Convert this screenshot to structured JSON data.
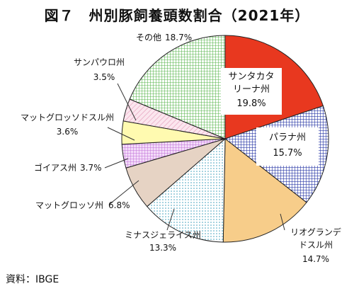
{
  "chart_data": {
    "type": "pie",
    "title": "図７　州別豚飼養頭数割合（2021年）",
    "source": "資料：IBGE",
    "slices": [
      {
        "name": "サンタカタ\nリーナ州",
        "value": 19.8,
        "label_value": "19.8%",
        "color": "#e8381f",
        "pattern": "solid"
      },
      {
        "name": "パラナ州",
        "value": 15.7,
        "label_value": "15.7%",
        "color": "#2b3aa8",
        "pattern": "grid-blue"
      },
      {
        "name": "リオグランデ\nドスル州",
        "value": 14.7,
        "label_value": "14.7%",
        "color": "#f7cd8a",
        "pattern": "solid"
      },
      {
        "name": "ミナスジェライス州",
        "value": 13.3,
        "label_value": "13.3%",
        "color": "#5fb2c9",
        "pattern": "dots-cyan"
      },
      {
        "name": "マットグロッソ州",
        "value": 6.8,
        "label_value": "6.8%",
        "color": "#e6d3c4",
        "pattern": "solid"
      },
      {
        "name": "ゴイアス州",
        "value": 3.7,
        "label_value": "3.7%",
        "color": "#d59be3",
        "pattern": "grid-purple"
      },
      {
        "name": "マットグロッソドスル州",
        "value": 3.6,
        "label_value": "3.6%",
        "color": "#fffab0",
        "pattern": "solid"
      },
      {
        "name": "サンパウロ州",
        "value": 3.5,
        "label_value": "3.5%",
        "color": "#f2c3d7",
        "pattern": "hatch-pink"
      },
      {
        "name": "その他",
        "value": 18.7,
        "label_value": "18.7%",
        "color": "#7fcf6e",
        "pattern": "grid-green"
      }
    ]
  }
}
